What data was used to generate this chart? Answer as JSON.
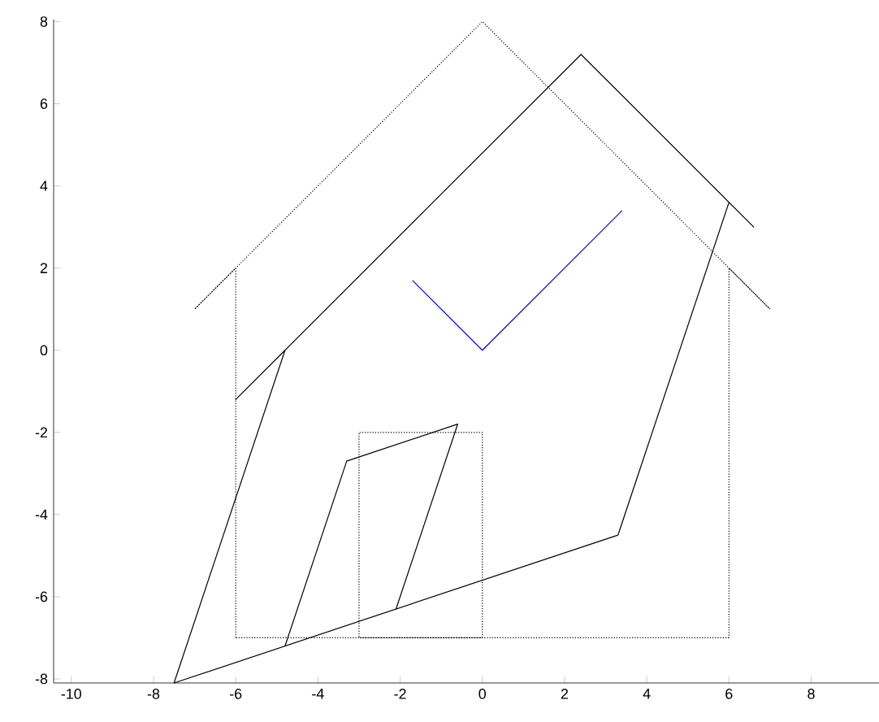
{
  "chart_data": {
    "type": "line",
    "series": [
      {
        "color": "#000000",
        "line_style": "dotted",
        "x": [
          -6,
          -6,
          -7,
          0,
          7,
          6,
          6
        ],
        "values": [
          -7,
          2,
          1,
          8,
          1,
          2,
          -7
        ]
      },
      {
        "color": "#000000",
        "line_style": "dotted",
        "x": [
          6,
          -3,
          -3,
          0,
          0,
          -6
        ],
        "values": [
          -7,
          -7,
          -2,
          -2,
          -7,
          -7
        ]
      },
      {
        "color": "#000000",
        "line_style": "solid",
        "x": [
          -7.5,
          -4.8,
          -6.0,
          2.4,
          6.6,
          6.0,
          3.3
        ],
        "values": [
          -8.1,
          0,
          -1.2,
          7.2,
          3.0,
          3.6,
          -4.5
        ]
      },
      {
        "color": "#000000",
        "line_style": "solid",
        "x": [
          3.3,
          -4.8,
          -3.3,
          -0.6,
          -2.1,
          -7.5
        ],
        "values": [
          -4.5,
          -7.2,
          -2.7,
          -1.8,
          -6.3,
          -8.1
        ]
      },
      {
        "color": "#0000ff",
        "line_style": "solid",
        "x": [
          -1.7,
          0,
          3.4
        ],
        "values": [
          1.7,
          0,
          3.4
        ]
      }
    ],
    "xlim": [
      -10.43,
      9.65
    ],
    "ylim": [
      -8.1,
      8.05
    ],
    "xticks": [
      -10,
      -8,
      -6,
      -4,
      -2,
      0,
      2,
      4,
      6,
      8
    ],
    "yticks": [
      -8,
      -6,
      -4,
      -2,
      0,
      2,
      4,
      6,
      8
    ],
    "grid": false,
    "marker": "none"
  }
}
